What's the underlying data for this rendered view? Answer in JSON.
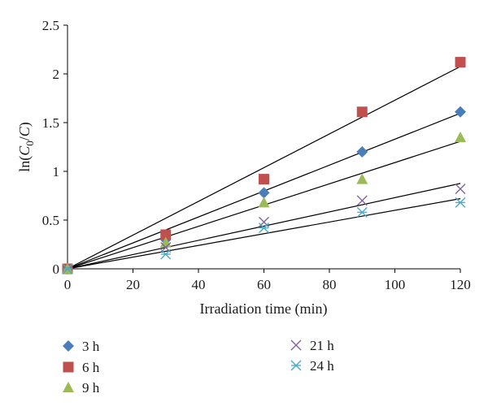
{
  "chart_data": {
    "type": "scatter",
    "xlabel": "Irradiation time (min)",
    "ylabel_parts": [
      "ln(",
      "C",
      "0",
      "/",
      "C",
      ")"
    ],
    "xlim": [
      0,
      120
    ],
    "ylim": [
      0,
      2.5
    ],
    "xticks": [
      0,
      20,
      40,
      60,
      80,
      100,
      120
    ],
    "yticks": [
      0,
      0.5,
      1,
      1.5,
      2,
      2.5
    ],
    "xtick_labels": [
      "0",
      "20",
      "40",
      "60",
      "80",
      "100",
      "120"
    ],
    "ytick_labels": [
      "0",
      "0.5",
      "1",
      "1.5",
      "2",
      "2.5"
    ],
    "grid": false,
    "legend_position": "bottom",
    "series": [
      {
        "name": "3 h",
        "marker": "diamond",
        "color": "#4a7ebb",
        "x": [
          0,
          30,
          60,
          90,
          120
        ],
        "y": [
          0,
          0.3,
          0.78,
          1.2,
          1.61
        ],
        "fit_slope": 0.0133
      },
      {
        "name": "6 h",
        "marker": "square",
        "color": "#c0504d",
        "x": [
          0,
          30,
          60,
          90,
          120
        ],
        "y": [
          0,
          0.35,
          0.92,
          1.61,
          2.12
        ],
        "fit_slope": 0.0173
      },
      {
        "name": "9 h",
        "marker": "triangle",
        "color": "#9bbb59",
        "x": [
          0,
          30,
          60,
          90,
          120
        ],
        "y": [
          0,
          0.27,
          0.68,
          0.92,
          1.35
        ],
        "fit_slope": 0.0109
      },
      {
        "name": "21 h",
        "marker": "x",
        "color": "#8064a2",
        "x": [
          0,
          30,
          60,
          90,
          120
        ],
        "y": [
          0,
          0.22,
          0.48,
          0.7,
          0.82
        ],
        "fit_slope": 0.0073
      },
      {
        "name": "24 h",
        "marker": "star",
        "color": "#4bacc6",
        "x": [
          0,
          30,
          60,
          90,
          120
        ],
        "y": [
          0,
          0.15,
          0.42,
          0.58,
          0.68
        ],
        "fit_slope": 0.006
      }
    ]
  }
}
